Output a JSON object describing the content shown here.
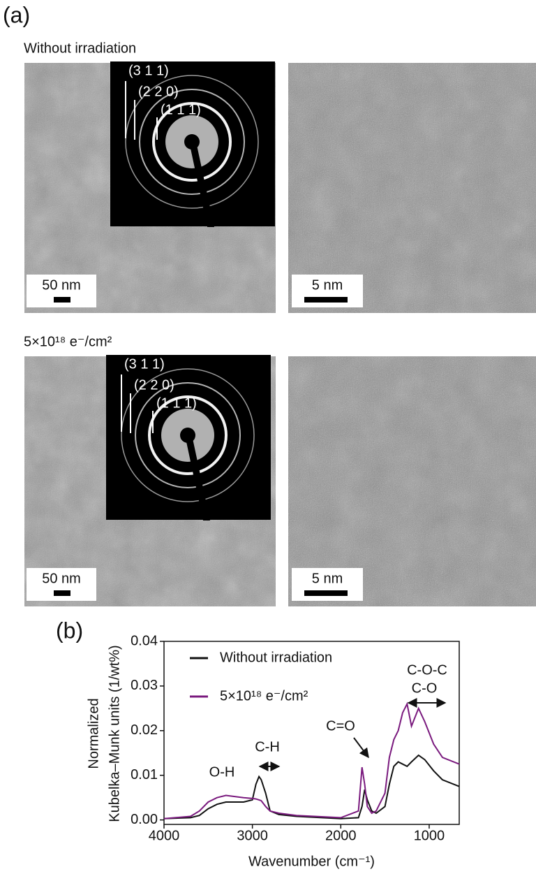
{
  "panel_a": {
    "label": "(a)",
    "rows": [
      {
        "caption": "Without irradiation",
        "saed_labels": [
          "(3 1 1)",
          "(2 2 0)",
          "(1 1 1)"
        ],
        "scale_bars": [
          "50 nm",
          "5 nm"
        ]
      },
      {
        "caption": "5×10¹⁸ e⁻/cm²",
        "saed_labels": [
          "(3 1 1)",
          "(2 2 0)",
          "(1 1 1)"
        ],
        "scale_bars": [
          "50 nm",
          "5 nm"
        ]
      }
    ]
  },
  "panel_b": {
    "label": "(b)"
  },
  "chart_data": {
    "type": "line",
    "x_label": "Wavenumber (cm⁻¹)",
    "y_label": [
      "Normalized",
      "Kubelka–Munk units (1/wt%)"
    ],
    "x": [
      4000,
      3700,
      3600,
      3500,
      3400,
      3300,
      3100,
      3000,
      2960,
      2925,
      2900,
      2850,
      2800,
      2700,
      2500,
      2000,
      1800,
      1760,
      1730,
      1700,
      1650,
      1600,
      1500,
      1450,
      1400,
      1350,
      1300,
      1250,
      1200,
      1120,
      1050,
      950,
      850,
      660
    ],
    "series": [
      {
        "name": "Without irradiation",
        "color": "#111111",
        "values": [
          0.0003,
          0.0005,
          0.001,
          0.0025,
          0.0035,
          0.004,
          0.004,
          0.0045,
          0.008,
          0.0097,
          0.009,
          0.006,
          0.002,
          0.0012,
          0.0008,
          0.0003,
          0.0005,
          0.003,
          0.0068,
          0.0045,
          0.002,
          0.0015,
          0.003,
          0.008,
          0.012,
          0.013,
          0.0125,
          0.012,
          0.013,
          0.0145,
          0.0135,
          0.011,
          0.009,
          0.0075
        ]
      },
      {
        "name": "5×10¹⁸ e⁻/cm²",
        "color": "#7a1a7e",
        "values": [
          0.0003,
          0.0008,
          0.002,
          0.004,
          0.005,
          0.0055,
          0.005,
          0.0048,
          0.0047,
          0.0045,
          0.0043,
          0.003,
          0.002,
          0.0015,
          0.001,
          0.0005,
          0.002,
          0.0118,
          0.008,
          0.003,
          0.0015,
          0.002,
          0.006,
          0.014,
          0.018,
          0.02,
          0.024,
          0.026,
          0.021,
          0.025,
          0.022,
          0.017,
          0.014,
          0.0125
        ]
      }
    ],
    "annotations": [
      "O-H",
      "C-H",
      "C=O",
      "C-O-C",
      "C-O"
    ],
    "xlim": [
      4000,
      660
    ],
    "xticks": [
      4000,
      3000,
      2000,
      1000
    ],
    "ylim": [
      -0.001,
      0.04
    ],
    "yticks": [
      {
        "value": 0,
        "label": "0.00"
      },
      0.01,
      0.02,
      0.03,
      0.04
    ],
    "legend": "upper-left"
  }
}
